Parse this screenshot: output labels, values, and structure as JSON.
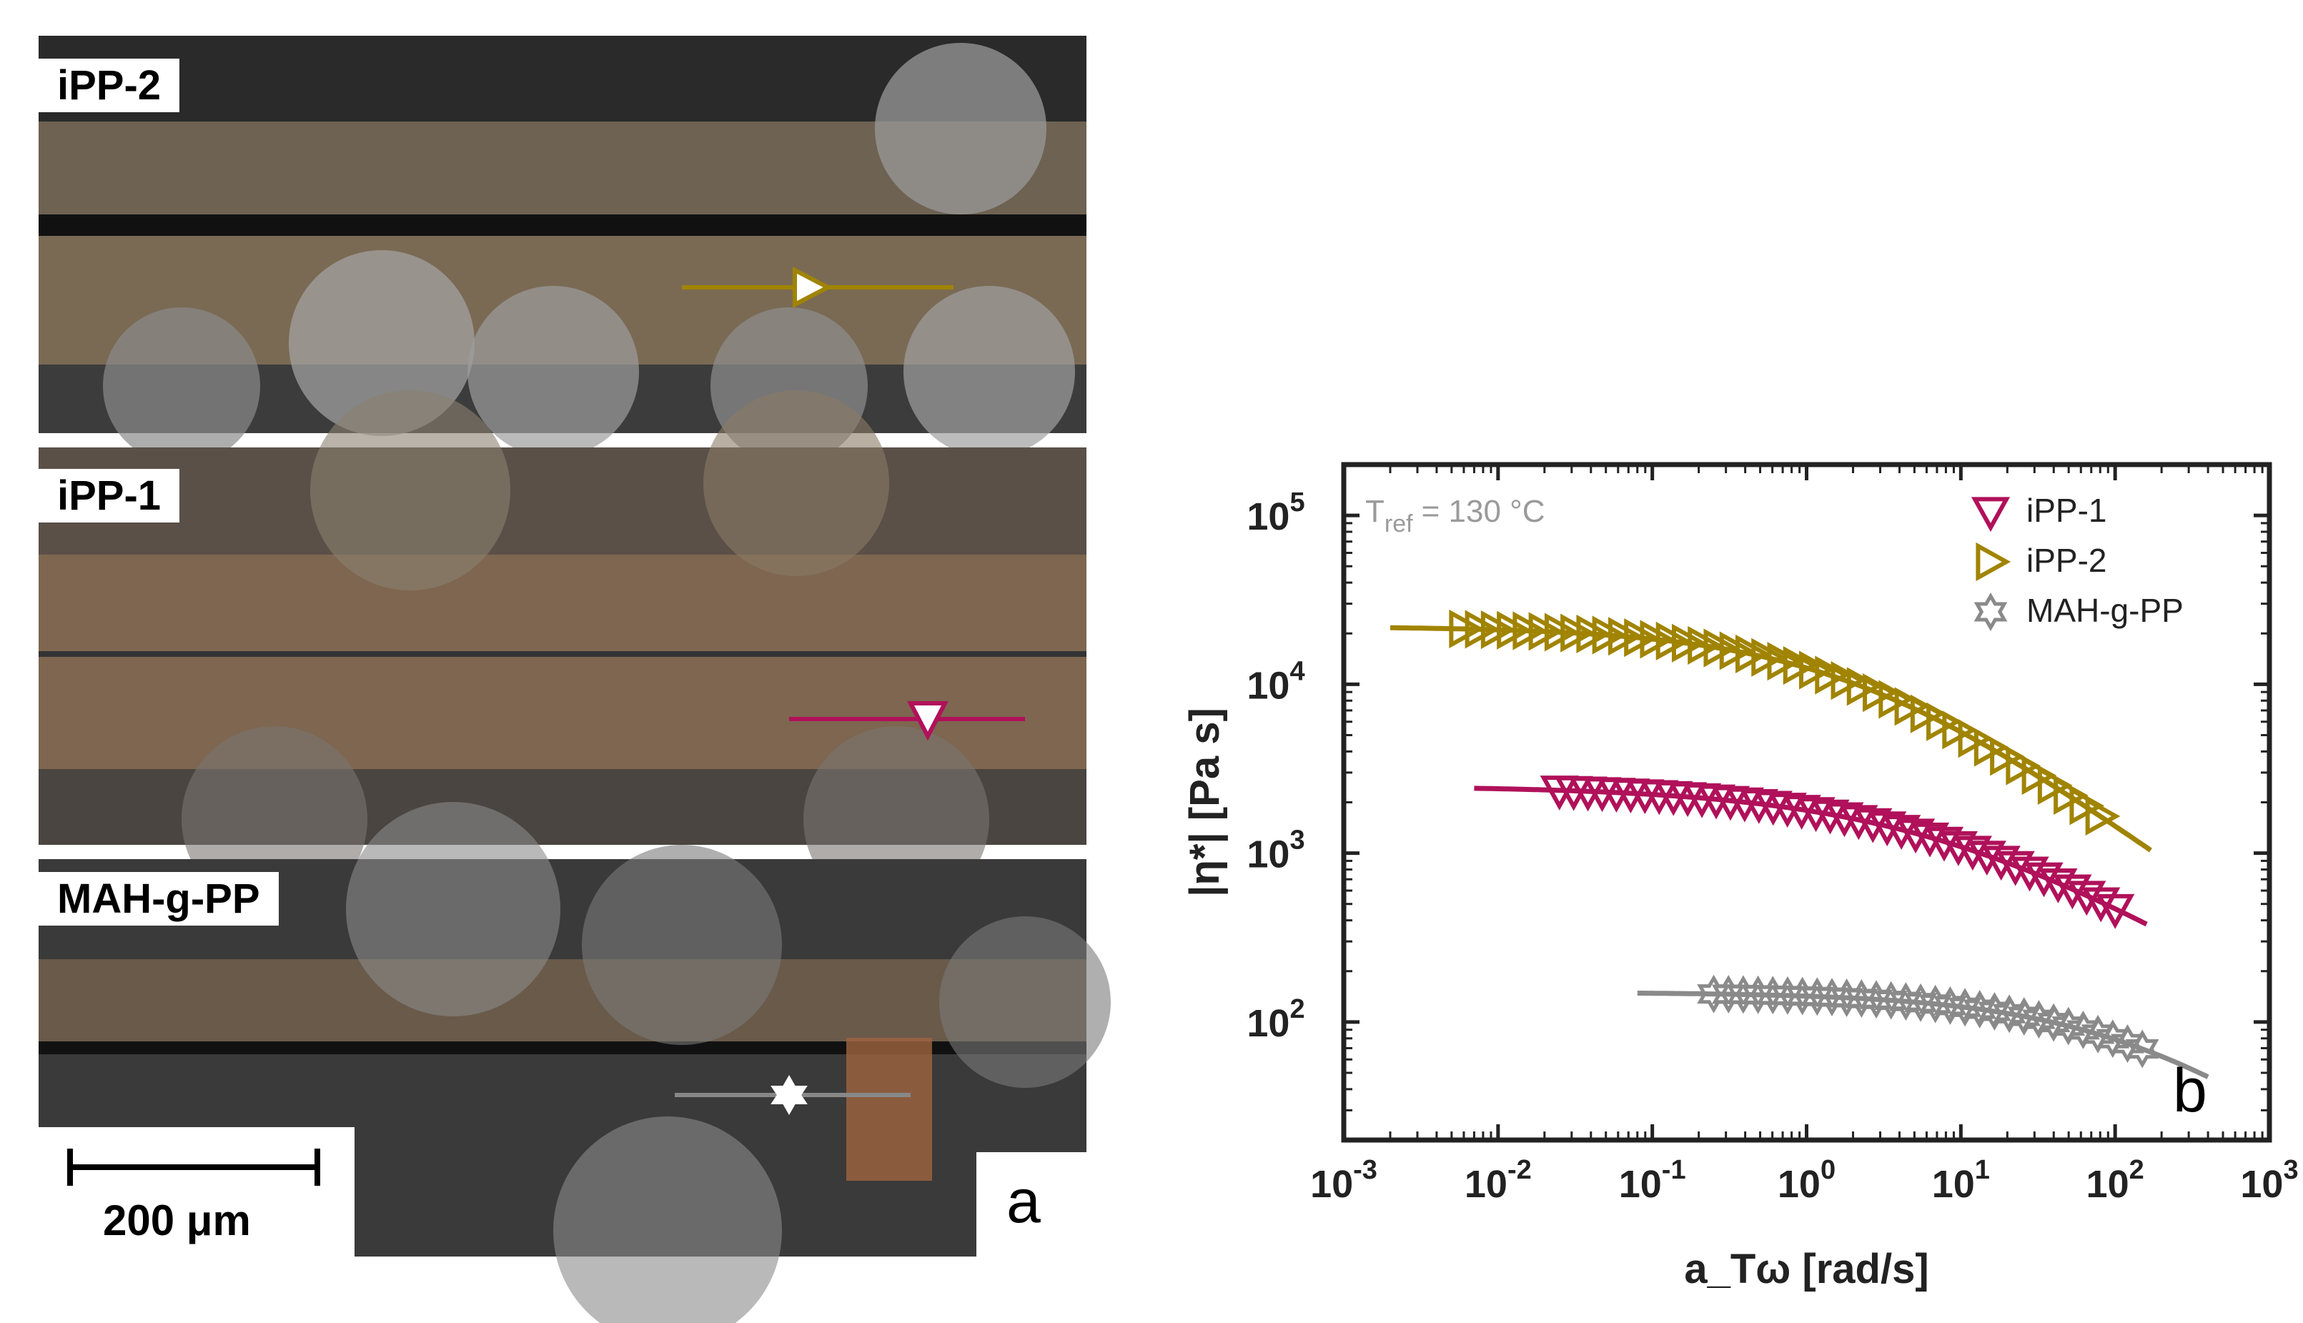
{
  "panel_a": {
    "label": "a",
    "scale_bar_label": "200 μm",
    "micrographs": [
      {
        "name": "iPP-2",
        "marker": "triangle-right",
        "color": "#a08400"
      },
      {
        "name": "iPP-1",
        "marker": "triangle-down",
        "color": "#b0115a"
      },
      {
        "name": "MAH-g-PP",
        "marker": "hexagram",
        "color": "#ffffff"
      }
    ]
  },
  "chart_data": {
    "type": "scatter",
    "panel_label": "b",
    "xlabel": "a_Tω [rad/s]",
    "ylabel": "|η*| [Pa s]",
    "xscale": "log",
    "yscale": "log",
    "xlim": [
      0.001,
      1000
    ],
    "ylim": [
      20,
      200000
    ],
    "x_tick_exponents": [
      -3,
      -2,
      -1,
      0,
      1,
      2,
      3
    ],
    "y_tick_exponents": [
      2,
      3,
      4,
      5
    ],
    "annotation": {
      "text_main": "T",
      "text_sub": "ref",
      "text_value": "= 130 °C"
    },
    "legend_position": "top-right",
    "series": [
      {
        "name": "iPP-1",
        "color": "#b0115a",
        "marker": "triangle-down",
        "x_range": [
          0.025,
          100
        ],
        "n_points": 40,
        "model": {
          "eta0": 2500,
          "lambda": 0.12,
          "n": 0.44,
          "a": 0.5
        },
        "fit_range": [
          0.007,
          160
        ]
      },
      {
        "name": "iPP-2",
        "color": "#a08400",
        "marker": "triangle-right",
        "x_range": [
          0.006,
          80
        ],
        "n_points": 41,
        "model": {
          "eta0": 22000,
          "lambda": 0.5,
          "n": 0.33,
          "a": 0.6
        },
        "fit_range": [
          0.002,
          170
        ]
      },
      {
        "name": "MAH-g-PP",
        "color": "#8a8a8a",
        "marker": "hexagram",
        "x_range": [
          0.25,
          150
        ],
        "n_points": 30,
        "model": {
          "eta0": 150,
          "lambda": 0.006,
          "n": 0.3,
          "a": 0.6
        },
        "fit_range": [
          0.08,
          400
        ]
      }
    ]
  }
}
